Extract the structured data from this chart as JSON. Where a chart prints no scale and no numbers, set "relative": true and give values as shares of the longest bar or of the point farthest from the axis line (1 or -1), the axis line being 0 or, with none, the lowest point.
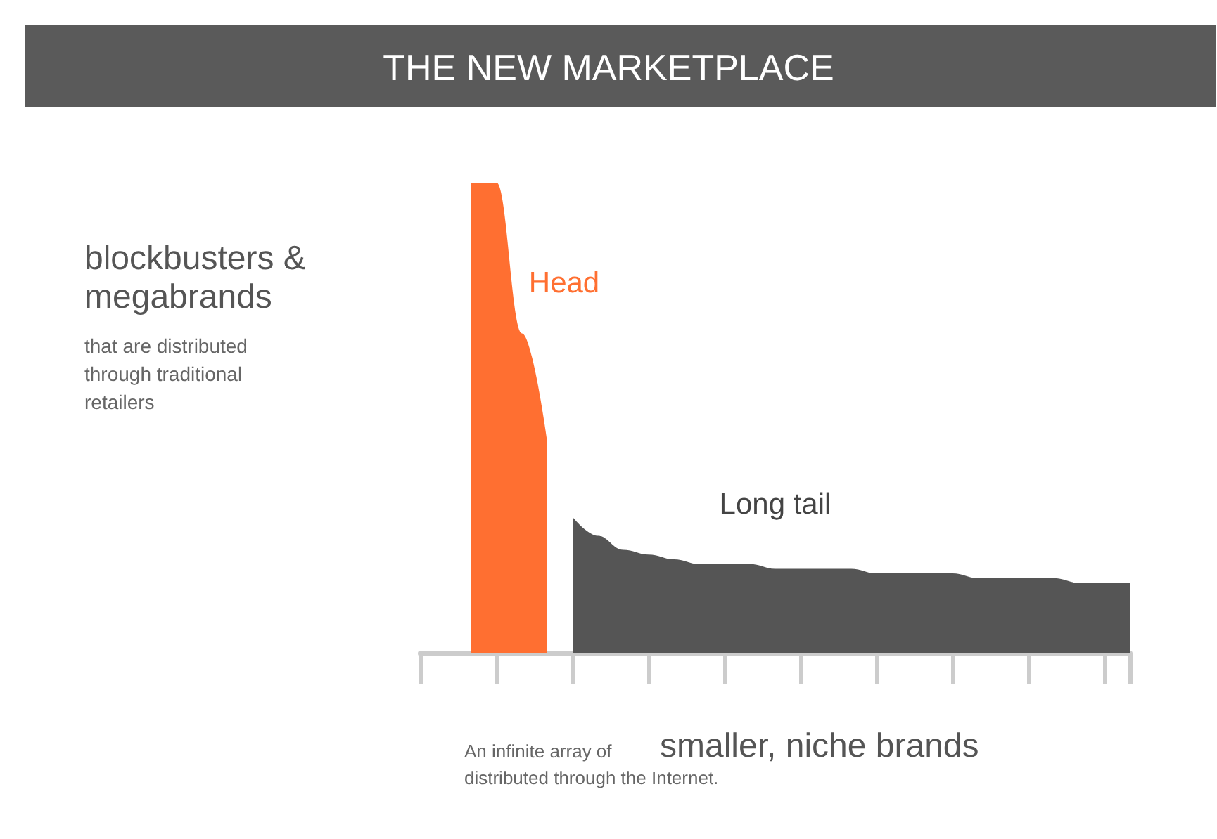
{
  "chart_data": {
    "type": "area",
    "title": "THE NEW MARKETPLACE",
    "relative": true,
    "legend": false,
    "grid": false,
    "marker": "none",
    "categories": [
      null,
      null,
      null,
      null,
      null,
      null,
      null,
      null,
      null,
      null,
      null,
      null,
      null,
      null,
      null,
      null,
      null,
      null,
      null,
      null,
      null,
      null,
      null,
      null,
      null,
      null,
      null,
      null,
      null
    ],
    "series": [
      {
        "name": "Head",
        "color": "#ff6f31",
        "values": [
          null,
          null,
          1,
          1,
          0.68,
          0.45,
          null,
          null,
          null,
          null,
          null,
          null,
          null,
          null,
          null,
          null,
          null,
          null,
          null,
          null,
          null,
          null,
          null,
          null,
          null,
          null,
          null,
          null,
          null
        ]
      },
      {
        "name": "Long tail",
        "color": "#555555",
        "values": [
          null,
          null,
          null,
          null,
          null,
          null,
          0.29,
          0.25,
          0.22,
          0.21,
          0.2,
          0.19,
          0.19,
          0.19,
          0.18,
          0.18,
          0.18,
          0.18,
          0.17,
          0.17,
          0.17,
          0.17,
          0.16,
          0.16,
          0.16,
          0.16,
          0.15,
          0.15,
          0.15
        ]
      }
    ],
    "annotations": [
      "blockbusters & megabrands",
      "that are distributed through traditional retailers",
      "An infinite array of",
      "smaller, niche brands",
      "distributed through the Internet."
    ]
  }
}
